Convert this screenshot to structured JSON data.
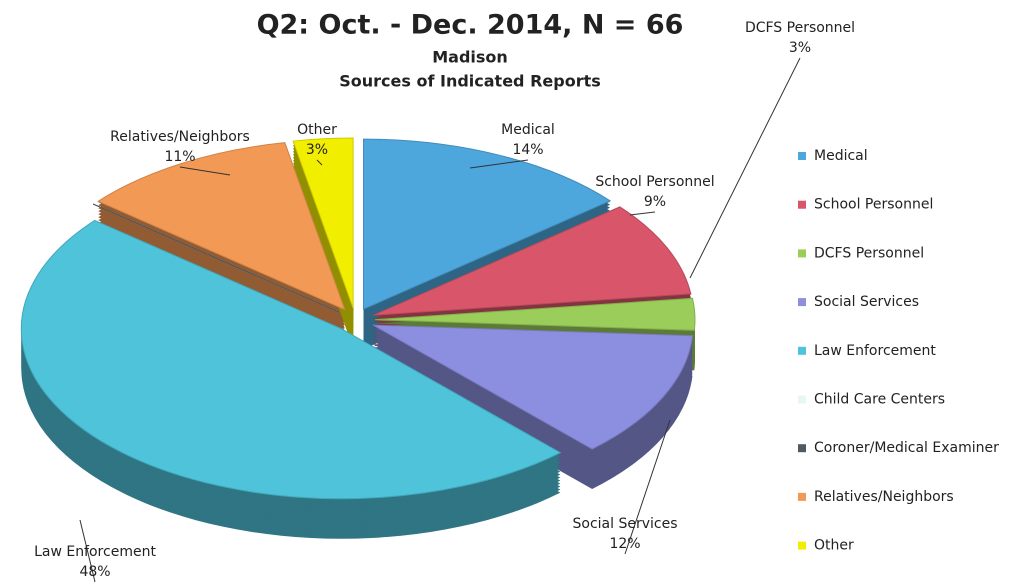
{
  "chart_data": {
    "type": "pie",
    "title": "Q2: Oct. - Dec. 2014, N = 66",
    "subtitle": "Madison",
    "subtitle2": "Sources of Indicated Reports",
    "categories": [
      "Medical",
      "School Personnel",
      "DCFS Personnel",
      "Social Services",
      "Law Enforcement",
      "Child Care Centers",
      "Coroner/Medical Examiner",
      "Relatives/Neighbors",
      "Other"
    ],
    "values": [
      14,
      9,
      3,
      12,
      48,
      0,
      0,
      11,
      3
    ],
    "value_labels": [
      "14%",
      "9%",
      "3%",
      "12%",
      "48%",
      null,
      null,
      "11%",
      "3%"
    ],
    "colors": [
      "#4da6dc",
      "#d9566a",
      "#9acd5a",
      "#8c8fe0",
      "#4ec3da",
      "#e8f6f8",
      "#505860",
      "#f29a55",
      "#f2ee00"
    ],
    "legend": "right"
  }
}
